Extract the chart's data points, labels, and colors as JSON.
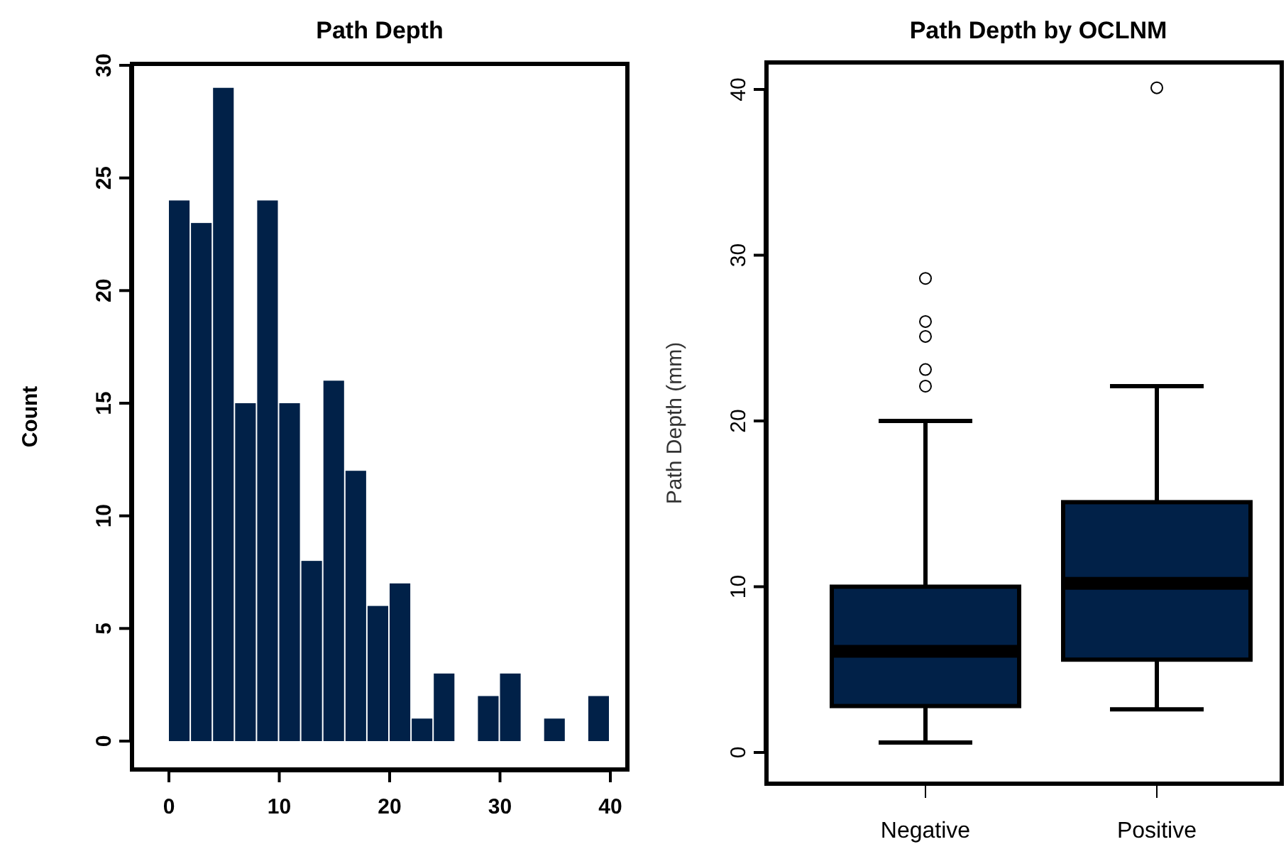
{
  "chart_data": [
    {
      "type": "histogram",
      "title": "Path Depth",
      "ylabel": "Count",
      "color": "#012148",
      "bins": [
        0,
        2,
        4,
        6,
        8,
        10,
        12,
        14,
        16,
        18,
        20,
        22,
        24,
        26,
        28,
        30,
        32,
        34,
        36,
        38,
        40
      ],
      "values": [
        24,
        23,
        29,
        15,
        24,
        15,
        8,
        16,
        12,
        6,
        7,
        1,
        3,
        0,
        2,
        3,
        0,
        1,
        0,
        2
      ],
      "xlim": [
        0,
        40
      ],
      "xticks": [
        0,
        10,
        20,
        30,
        40
      ],
      "ylim": [
        0,
        30
      ],
      "yticks": [
        0,
        5,
        10,
        15,
        20,
        25,
        30
      ],
      "grid": false
    },
    {
      "type": "box",
      "title": "Path Depth by OCLNM",
      "ylabel": "Path Depth (mm)",
      "color": "#012148",
      "categories": [
        "Negative",
        "Positive"
      ],
      "boxes": [
        {
          "low": 0.6,
          "q1": 2.8,
          "median": 6.1,
          "q3": 10,
          "high": 20,
          "outliers": [
            22.1,
            23.1,
            25.1,
            26,
            28.6
          ]
        },
        {
          "low": 2.6,
          "q1": 5.6,
          "median": 10.2,
          "q3": 15.1,
          "high": 22.1,
          "outliers": [
            40.1
          ]
        }
      ],
      "ylim": [
        0,
        40
      ],
      "yticks": [
        0,
        10,
        20,
        30,
        40
      ],
      "grid": false
    }
  ]
}
